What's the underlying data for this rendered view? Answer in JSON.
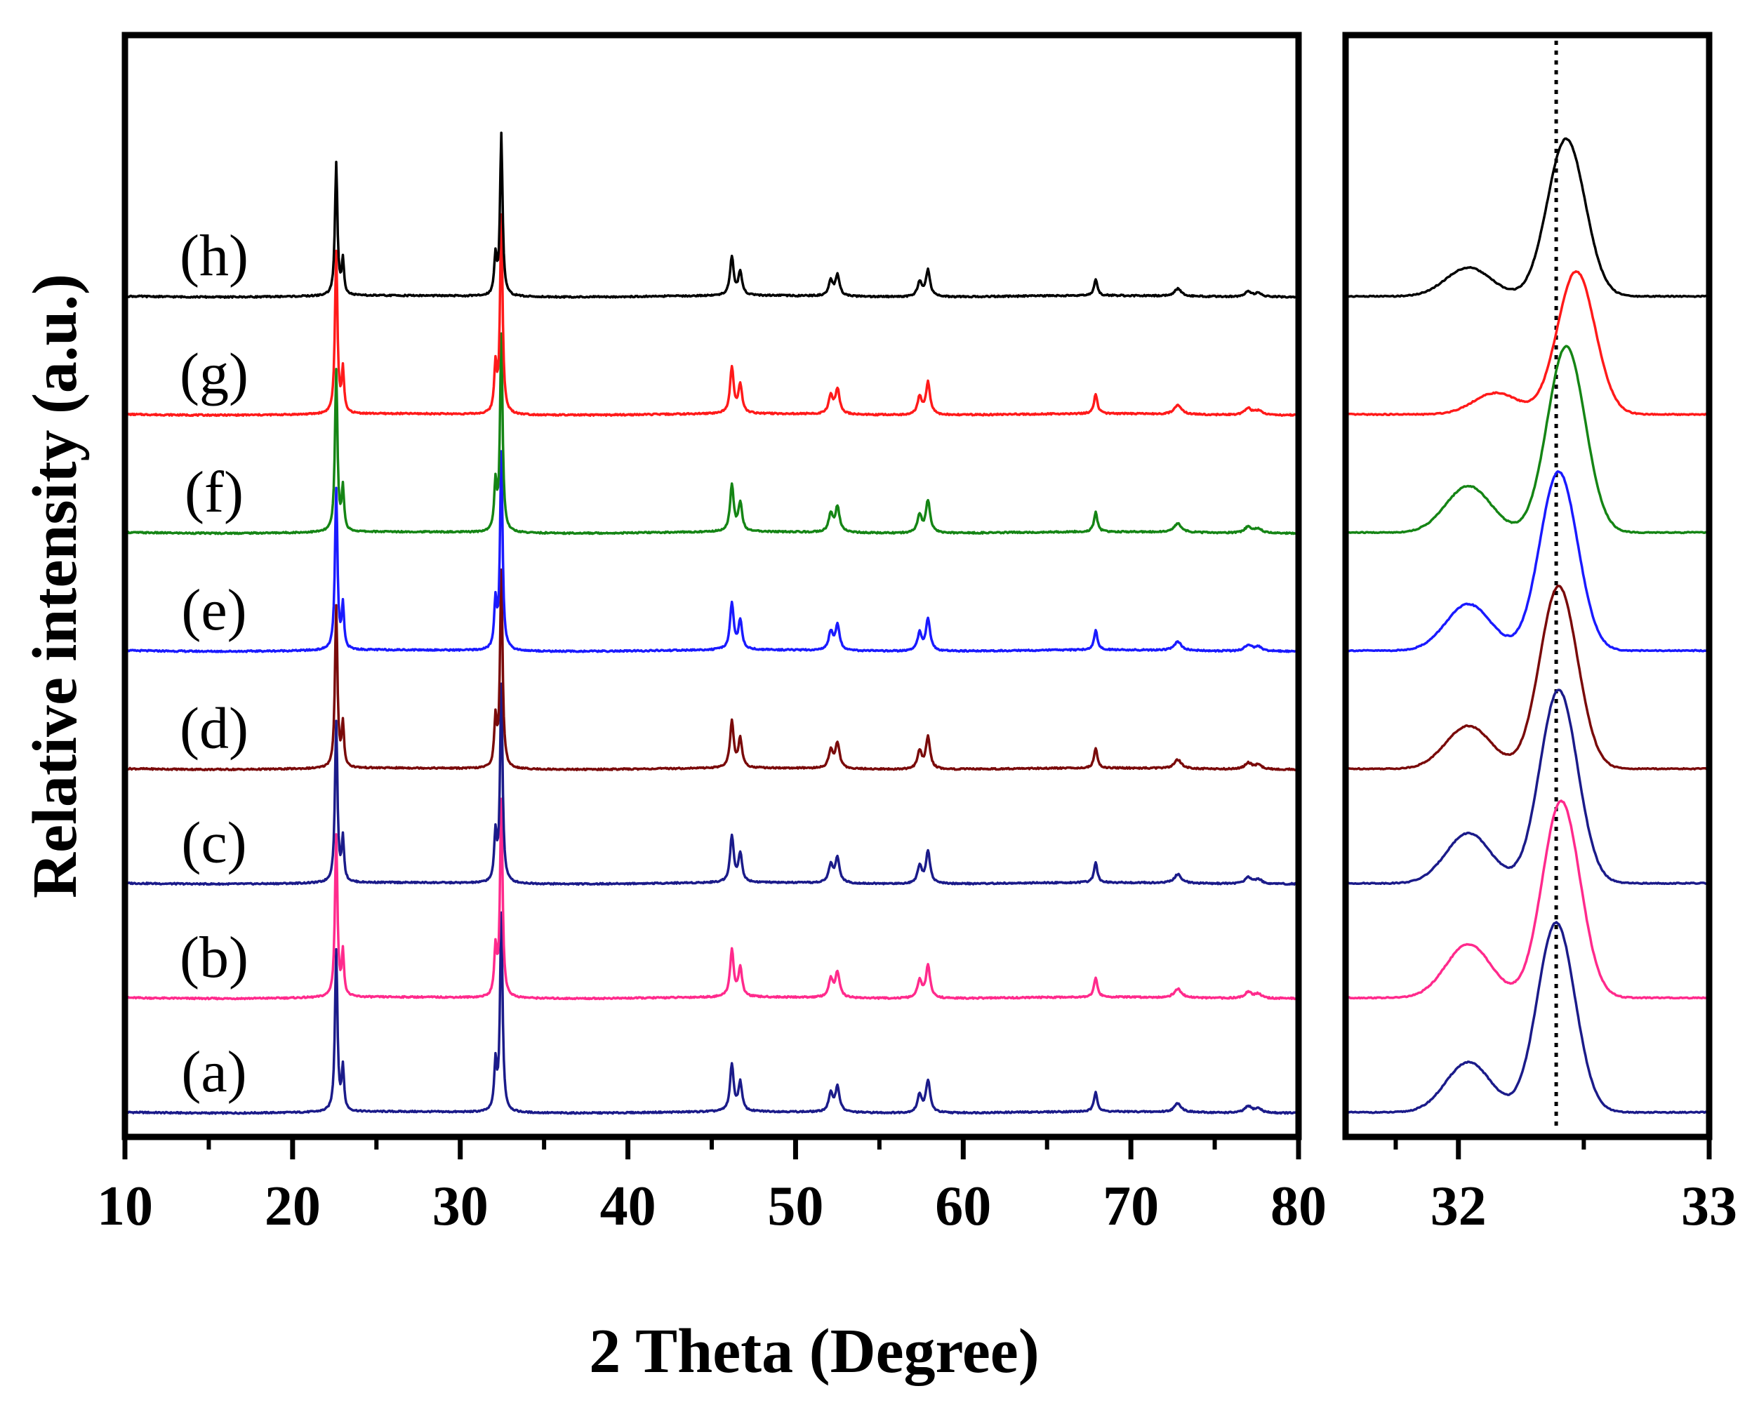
{
  "chart_data": [
    {
      "type": "line",
      "panel": "main",
      "xlabel": "2 Theta (Degree)",
      "ylabel": "Relative intensity (a.u.)",
      "xlim": [
        10,
        80
      ],
      "xticks": [
        10,
        20,
        30,
        40,
        50,
        60,
        70,
        80
      ],
      "xtick_labels": [
        "10",
        "20",
        "30",
        "40",
        "50",
        "60",
        "70",
        "80"
      ],
      "yticks": false,
      "stacked": true,
      "peaks": [
        {
          "x": 22.6,
          "h": 0.45,
          "w": 0.09
        },
        {
          "x": 23.0,
          "h": 0.12,
          "w": 0.08
        },
        {
          "x": 32.1,
          "h": 0.13,
          "w": 0.09
        },
        {
          "x": 32.45,
          "h": 0.55,
          "w": 0.09
        },
        {
          "x": 46.2,
          "h": 0.13,
          "w": 0.13
        },
        {
          "x": 46.7,
          "h": 0.08,
          "w": 0.13
        },
        {
          "x": 52.1,
          "h": 0.05,
          "w": 0.15
        },
        {
          "x": 52.5,
          "h": 0.07,
          "w": 0.15
        },
        {
          "x": 57.4,
          "h": 0.05,
          "w": 0.15
        },
        {
          "x": 57.9,
          "h": 0.09,
          "w": 0.15
        },
        {
          "x": 67.9,
          "h": 0.055,
          "w": 0.12
        },
        {
          "x": 72.8,
          "h": 0.025,
          "w": 0.25
        },
        {
          "x": 77.0,
          "h": 0.018,
          "w": 0.25
        },
        {
          "x": 77.6,
          "h": 0.012,
          "w": 0.25
        }
      ],
      "series": [
        {
          "name": "(a)",
          "color": "#1b1b8a",
          "offset": 0.0,
          "scale": 1.0
        },
        {
          "name": "(b)",
          "color": "#ff2a8c",
          "offset": 0.32,
          "scale": 1.0
        },
        {
          "name": "(c)",
          "color": "#1b1b8a",
          "offset": 0.64,
          "scale": 1.0
        },
        {
          "name": "(d)",
          "color": "#7a0a0a",
          "offset": 0.96,
          "scale": 1.0
        },
        {
          "name": "(e)",
          "color": "#1a1aff",
          "offset": 1.29,
          "scale": 1.0
        },
        {
          "name": "(f)",
          "color": "#158515",
          "offset": 1.62,
          "scale": 1.0
        },
        {
          "name": "(g)",
          "color": "#ff1a1a",
          "offset": 1.95,
          "scale": 1.0
        },
        {
          "name": "(h)",
          "color": "#000000",
          "offset": 2.28,
          "scale": 0.82
        }
      ]
    },
    {
      "type": "line",
      "panel": "zoom",
      "xlim": [
        31.55,
        33.0
      ],
      "xticks": [
        32,
        33
      ],
      "xtick_labels": [
        "32",
        "33"
      ],
      "reference_line_x": 32.39,
      "reference_line_style": "dotted",
      "series": [
        {
          "name": "(a)",
          "color": "#1b1b8a",
          "offset": 0.0,
          "main_x": 32.39,
          "main_h": 0.53,
          "shoulder_x": 32.04,
          "shoulder_h": 0.14
        },
        {
          "name": "(b)",
          "color": "#ff2a8c",
          "offset": 0.32,
          "main_x": 32.41,
          "main_h": 0.55,
          "shoulder_x": 32.04,
          "shoulder_h": 0.15
        },
        {
          "name": "(c)",
          "color": "#1b1b8a",
          "offset": 0.64,
          "main_x": 32.4,
          "main_h": 0.54,
          "shoulder_x": 32.04,
          "shoulder_h": 0.14
        },
        {
          "name": "(d)",
          "color": "#7a0a0a",
          "offset": 0.96,
          "main_x": 32.4,
          "main_h": 0.51,
          "shoulder_x": 32.04,
          "shoulder_h": 0.12
        },
        {
          "name": "(e)",
          "color": "#1a1aff",
          "offset": 1.29,
          "main_x": 32.4,
          "main_h": 0.5,
          "shoulder_x": 32.04,
          "shoulder_h": 0.13
        },
        {
          "name": "(f)",
          "color": "#158515",
          "offset": 1.62,
          "main_x": 32.43,
          "main_h": 0.52,
          "shoulder_x": 32.04,
          "shoulder_h": 0.13
        },
        {
          "name": "(g)",
          "color": "#ff1a1a",
          "offset": 1.95,
          "main_x": 32.47,
          "main_h": 0.4,
          "shoulder_x": 32.15,
          "shoulder_h": 0.06
        },
        {
          "name": "(h)",
          "color": "#000000",
          "offset": 2.28,
          "main_x": 32.43,
          "main_h": 0.44,
          "shoulder_x": 32.04,
          "shoulder_h": 0.08
        }
      ]
    }
  ]
}
